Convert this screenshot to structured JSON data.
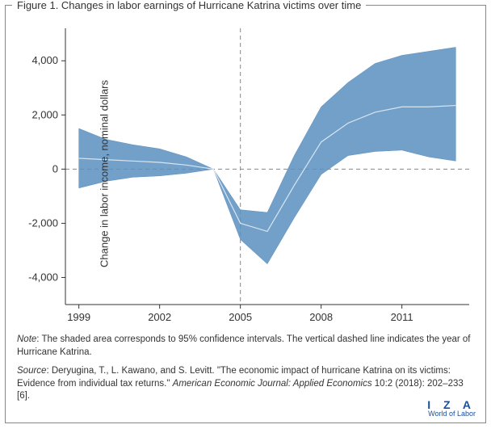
{
  "title": "Figure 1. Changes in labor earnings of Hurricane Katrina victims over time",
  "ylabel": "Change in labor income, nominal dollars",
  "chart": {
    "type": "line-with-band",
    "years": [
      1999,
      2000,
      2001,
      2002,
      2003,
      2004,
      2005,
      2006,
      2007,
      2008,
      2009,
      2010,
      2011,
      2012,
      2013
    ],
    "mean": [
      400,
      350,
      300,
      250,
      150,
      0,
      -2000,
      -2300,
      -600,
      1000,
      1700,
      2100,
      2300,
      2300,
      2350
    ],
    "upper": [
      1500,
      1100,
      900,
      750,
      450,
      0,
      -1500,
      -1600,
      500,
      2300,
      3200,
      3900,
      4200,
      4350,
      4500
    ],
    "lower": [
      -700,
      -450,
      -300,
      -250,
      -150,
      0,
      -2600,
      -3500,
      -1800,
      -200,
      500,
      650,
      700,
      450,
      300
    ],
    "x_ticks": [
      1999,
      2002,
      2005,
      2008,
      2011
    ],
    "y_ticks": [
      -4000,
      -2000,
      0,
      2000,
      4000
    ],
    "y_tick_labels": [
      "-4,000",
      "-2,000",
      "0",
      "2,000",
      "4,000"
    ],
    "xlim": [
      1998.5,
      2013.5
    ],
    "ylim": [
      -5000,
      5200
    ],
    "vline_year": 2005,
    "colors": {
      "band_fill": "#5b8fbf",
      "line": "#3a6fa0",
      "axis": "#333333",
      "grid_dash": "#888888",
      "background": "#ffffff"
    },
    "line_width": 1.2,
    "band_opacity": 0.85,
    "tick_fontsize": 13,
    "label_fontsize": 13
  },
  "note": "The shaded area corresponds to 95% confidence intervals. The vertical dashed line indicates the year of Hurricane Katrina.",
  "note_label": "Note",
  "source_label": "Source",
  "source": "Deryugina, T., L. Kawano, and S. Levitt. \"The economic impact of hurricane Katrina on its victims: Evidence from individual tax returns.\" American Economic Journal: Applied Economics 10:2 (2018): 202–233 [6].",
  "source_journal": "American Economic Journal: Applied Economics",
  "logo": {
    "iza": "I Z A",
    "wol": "World of Labor"
  }
}
